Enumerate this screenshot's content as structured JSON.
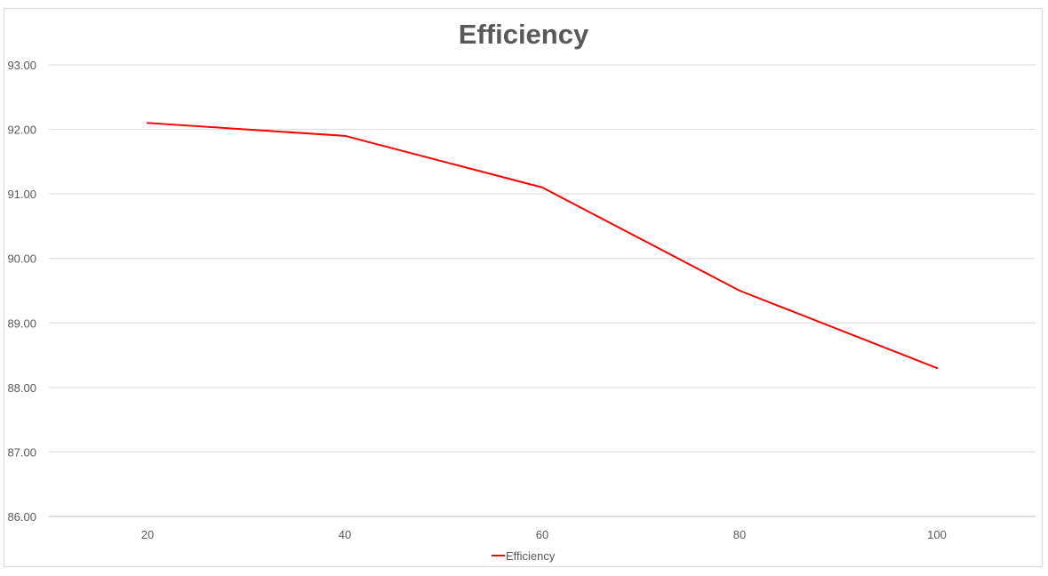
{
  "chart_data": {
    "type": "line",
    "title": "Efficiency",
    "xlabel": "",
    "ylabel": "",
    "categories": [
      "20",
      "40",
      "60",
      "80",
      "100"
    ],
    "series": [
      {
        "name": "Efficiency",
        "color": "#ff0000",
        "values": [
          92.1,
          91.9,
          91.1,
          89.5,
          88.3
        ]
      }
    ],
    "ylim": [
      86,
      93
    ],
    "ytick_step": 1,
    "ytick_labels": [
      "86.00",
      "87.00",
      "88.00",
      "89.00",
      "90.00",
      "91.00",
      "92.00",
      "93.00"
    ],
    "grid": true,
    "legend_position": "bottom"
  }
}
